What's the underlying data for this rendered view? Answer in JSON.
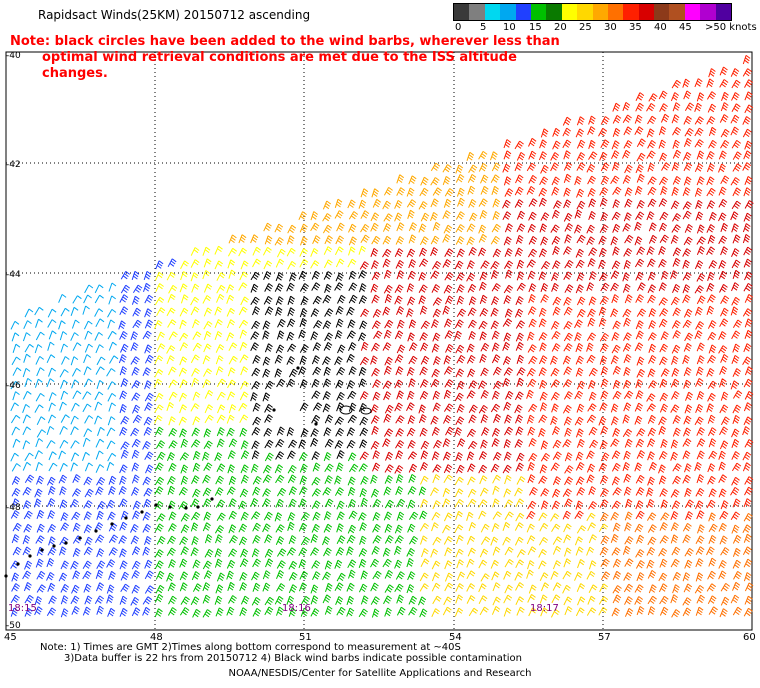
{
  "title": "Rapidsact Winds(25KM) 20150712 ascending",
  "note_line1": "Note: black circles have been added to the wind barbs, wherever less than",
  "note_line2": "optimal wind retrieval conditions are met due to the ISS altitude changes.",
  "legend": {
    "ticks": [
      "0",
      "5",
      "10",
      "15",
      "20",
      "25",
      "30",
      "35",
      "40",
      "45",
      ">50 knots"
    ],
    "colors": [
      "#3a3a3a",
      "#7f7f7f",
      "#00d8f0",
      "#00a8f0",
      "#2040ff",
      "#00c000",
      "#0a7a00",
      "#ffff00",
      "#ffd800",
      "#ffa800",
      "#ff7000",
      "#ff2000",
      "#d80000",
      "#8c3a1a",
      "#b05020",
      "#ff00ff",
      "#b000d0",
      "#5000a0"
    ]
  },
  "map": {
    "lat_labels": [
      "-40",
      "-42",
      "-44",
      "-46",
      "-48",
      "-50"
    ],
    "lon_labels": [
      "45",
      "48",
      "51",
      "54",
      "57",
      "60"
    ],
    "time_labels": [
      "18:15",
      "18:16",
      "18:17"
    ]
  },
  "footer_line1": "Note: 1) Times are GMT 2)Times along bottom correspond to measurement at ~40S",
  "footer_line2": "3)Data buffer is 22 hrs from 20150712 4) Black wind barbs indicate possible contamination",
  "credit": "NOAA/NESDIS/Center for Satellite Applications and Research"
}
